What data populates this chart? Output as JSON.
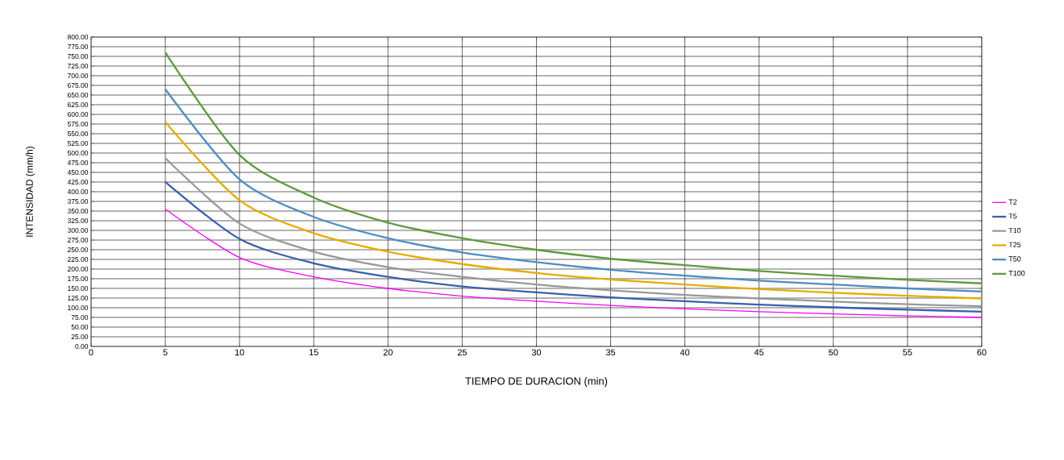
{
  "chart_data": {
    "type": "line",
    "xlabel": "TIEMPO DE DURACION (min)",
    "ylabel": "INTENSIDAD (mm/h)",
    "x": [
      5,
      10,
      15,
      20,
      25,
      30,
      35,
      40,
      45,
      50,
      55,
      60
    ],
    "series": [
      {
        "name": "T2",
        "color": "#ff00ff",
        "values": [
          355,
          230,
          180,
          150,
          130,
          117,
          106,
          97,
          90,
          84,
          79,
          75
        ]
      },
      {
        "name": "T5",
        "color": "#3a5fad",
        "values": [
          425,
          278,
          215,
          180,
          155,
          140,
          127,
          117,
          108,
          101,
          95,
          90
        ]
      },
      {
        "name": "T10",
        "color": "#999999",
        "values": [
          487,
          318,
          245,
          205,
          180,
          160,
          145,
          133,
          124,
          116,
          109,
          104
        ]
      },
      {
        "name": "T25",
        "color": "#e6ac00",
        "values": [
          580,
          378,
          293,
          245,
          213,
          190,
          173,
          160,
          148,
          139,
          131,
          124
        ]
      },
      {
        "name": "T50",
        "color": "#4e8cc4",
        "values": [
          665,
          432,
          335,
          280,
          243,
          218,
          198,
          183,
          170,
          160,
          150,
          142
        ]
      },
      {
        "name": "T100",
        "color": "#5e9a3c",
        "values": [
          760,
          495,
          385,
          320,
          280,
          250,
          227,
          210,
          195,
          183,
          172,
          163
        ]
      }
    ],
    "xlim": [
      0,
      60
    ],
    "xticks": [
      0,
      5,
      10,
      15,
      20,
      25,
      30,
      35,
      40,
      45,
      50,
      55,
      60
    ],
    "ylim": [
      0,
      800
    ],
    "yticks": [
      {
        "value": 0,
        "label": "0.00"
      },
      {
        "value": 25,
        "label": "25.00"
      },
      {
        "value": 50,
        "label": "50.00"
      },
      {
        "value": 75,
        "label": "75.00"
      },
      {
        "value": 100,
        "label": "100.00"
      },
      {
        "value": 125,
        "label": "125.00"
      },
      {
        "value": 150,
        "label": "150.00"
      },
      {
        "value": 175,
        "label": "175.00"
      },
      {
        "value": 200,
        "label": "200.00"
      },
      {
        "value": 225,
        "label": "225.00"
      },
      {
        "value": 250,
        "label": "250.00"
      },
      {
        "value": 275,
        "label": "275.00"
      },
      {
        "value": 300,
        "label": "300.00"
      },
      {
        "value": 325,
        "label": "325.00"
      },
      {
        "value": 350,
        "label": "350.00"
      },
      {
        "value": 375,
        "label": "375.00"
      },
      {
        "value": 400,
        "label": "400.00"
      },
      {
        "value": 425,
        "label": "425.00"
      },
      {
        "value": 450,
        "label": "450.00"
      },
      {
        "value": 475,
        "label": "475.00"
      },
      {
        "value": 500,
        "label": "500.00"
      },
      {
        "value": 525,
        "label": "525.00"
      },
      {
        "value": 550,
        "label": "550.00"
      },
      {
        "value": 575,
        "label": "575.00"
      },
      {
        "value": 600,
        "label": "600.00"
      },
      {
        "value": 625,
        "label": "625.00"
      },
      {
        "value": 650,
        "label": "650.00"
      },
      {
        "value": 675,
        "label": "675.00"
      },
      {
        "value": 700,
        "label": "700.00"
      },
      {
        "value": 725,
        "label": "725.00"
      },
      {
        "value": 750,
        "label": "750.00"
      },
      {
        "value": 775,
        "label": "775.00"
      },
      {
        "value": 800,
        "label": "800.00"
      }
    ],
    "grid": true,
    "legend": "right",
    "marker": "none",
    "line_style": "solid"
  }
}
